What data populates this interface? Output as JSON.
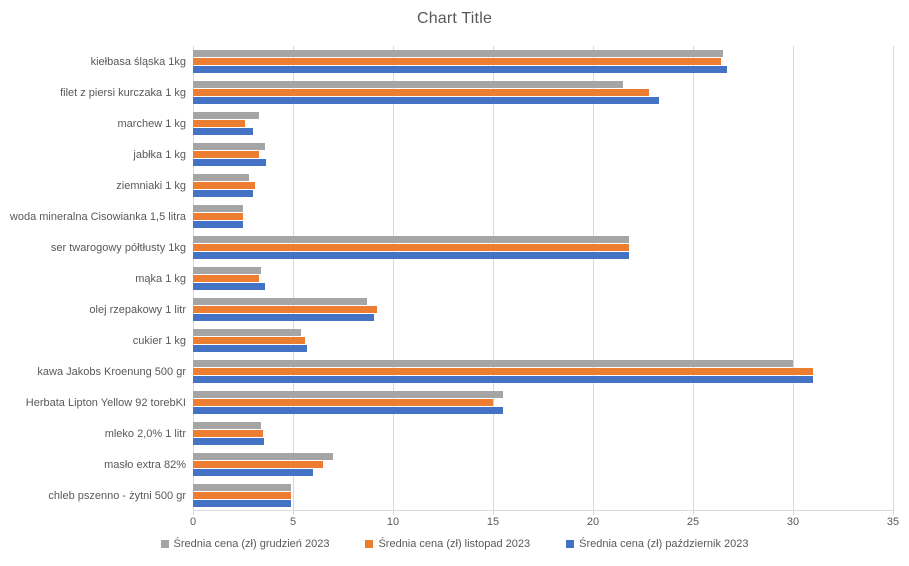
{
  "title": "Chart Title",
  "chart_data": {
    "type": "bar",
    "orientation": "horizontal",
    "title": "Chart Title",
    "xlabel": "",
    "ylabel": "",
    "xlim": [
      0,
      35
    ],
    "x_ticks": [
      0,
      5,
      10,
      15,
      20,
      25,
      30,
      35
    ],
    "grid": "vertical",
    "legend_position": "bottom",
    "categories": [
      "kiełbasa śląska 1kg",
      "filet z piersi kurczaka 1 kg",
      "marchew 1 kg",
      "jabłka 1 kg",
      "ziemniaki 1 kg",
      "woda mineralna Cisowianka 1,5 litra",
      "ser twarogowy półtłusty 1kg",
      "mąka 1 kg",
      "olej rzepakowy 1 litr",
      "cukier 1 kg",
      "kawa Jakobs Kroenung 500 gr",
      "Herbata Lipton Yellow 92 torebKI",
      "mleko 2,0% 1 litr",
      "masło extra 82%",
      "chleb pszenno - żytni 500 gr"
    ],
    "series": [
      {
        "name": "Średnia cena (zł) grudzień 2023",
        "color": "#a5a5a5",
        "values": [
          26.5,
          21.5,
          3.3,
          3.6,
          2.8,
          2.5,
          21.8,
          3.4,
          8.7,
          5.4,
          30,
          15.5,
          3.4,
          7,
          4.9
        ]
      },
      {
        "name": "Średnia cena (zł) listopad 2023",
        "color": "#ed7d31",
        "values": [
          26.4,
          22.8,
          2.6,
          3.3,
          3.1,
          2.5,
          21.8,
          3.3,
          9.2,
          5.6,
          31,
          15,
          3.5,
          6.5,
          4.9
        ]
      },
      {
        "name": "Średnia cena (zł) październik 2023",
        "color": "#4472c4",
        "values": [
          26.7,
          23.3,
          3.0,
          3.65,
          3.0,
          2.5,
          21.8,
          3.6,
          9.05,
          5.7,
          31,
          15.5,
          3.55,
          6,
          4.9
        ]
      }
    ],
    "colors": {
      "gridline": "#d9d9d9",
      "axis_text": "#595959",
      "title_text": "#595959",
      "background": "#ffffff"
    }
  }
}
